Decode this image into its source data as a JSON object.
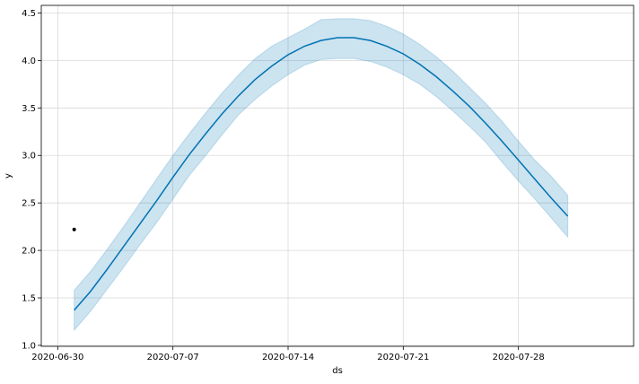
{
  "chart_data": {
    "type": "line",
    "title": "",
    "xlabel": "ds",
    "ylabel": "y",
    "x_ticks": [
      "2020-06-30",
      "2020-07-07",
      "2020-07-14",
      "2020-07-21",
      "2020-07-28"
    ],
    "y_ticks": [
      "1.0",
      "1.5",
      "2.0",
      "2.5",
      "3.0",
      "3.5",
      "4.0",
      "4.5"
    ],
    "xlim": [
      "2020-06-29",
      "2020-08-04"
    ],
    "ylim": [
      0.99,
      4.58
    ],
    "grid": true,
    "colors": {
      "line": "#0072B2",
      "band": "#0072B2",
      "point": "#000000",
      "grid": "#d9d9d9"
    },
    "series": [
      {
        "kind": "forecast",
        "x": [
          "2020-07-01",
          "2020-07-02",
          "2020-07-03",
          "2020-07-04",
          "2020-07-05",
          "2020-07-06",
          "2020-07-07",
          "2020-07-08",
          "2020-07-09",
          "2020-07-10",
          "2020-07-11",
          "2020-07-12",
          "2020-07-13",
          "2020-07-14",
          "2020-07-15",
          "2020-07-16",
          "2020-07-17",
          "2020-07-18",
          "2020-07-19",
          "2020-07-20",
          "2020-07-21",
          "2020-07-22",
          "2020-07-23",
          "2020-07-24",
          "2020-07-25",
          "2020-07-26",
          "2020-07-27",
          "2020-07-28",
          "2020-07-29",
          "2020-07-30",
          "2020-07-31"
        ],
        "y": [
          1.37,
          1.57,
          1.8,
          2.04,
          2.28,
          2.52,
          2.77,
          3.01,
          3.23,
          3.44,
          3.63,
          3.8,
          3.94,
          4.06,
          4.15,
          4.21,
          4.24,
          4.24,
          4.21,
          4.15,
          4.07,
          3.96,
          3.83,
          3.68,
          3.52,
          3.34,
          3.15,
          2.95,
          2.75,
          2.55,
          2.36
        ],
        "y_lower": [
          1.16,
          1.36,
          1.59,
          1.82,
          2.06,
          2.29,
          2.54,
          2.79,
          3.0,
          3.22,
          3.43,
          3.59,
          3.73,
          3.85,
          3.95,
          4.01,
          4.02,
          4.02,
          3.99,
          3.93,
          3.85,
          3.75,
          3.62,
          3.47,
          3.31,
          3.14,
          2.93,
          2.73,
          2.54,
          2.34,
          2.14
        ],
        "y_upper": [
          1.58,
          1.78,
          2.01,
          2.25,
          2.5,
          2.75,
          3.0,
          3.23,
          3.45,
          3.66,
          3.85,
          4.02,
          4.15,
          4.24,
          4.33,
          4.43,
          4.44,
          4.44,
          4.42,
          4.36,
          4.28,
          4.17,
          4.04,
          3.89,
          3.72,
          3.55,
          3.36,
          3.15,
          2.95,
          2.78,
          2.58
        ]
      },
      {
        "kind": "observed",
        "x": [
          "2020-07-01"
        ],
        "y": [
          2.22
        ]
      }
    ]
  }
}
